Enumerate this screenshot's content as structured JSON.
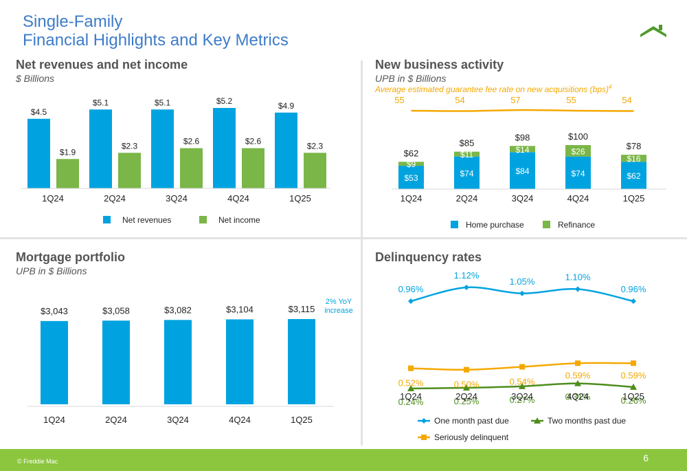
{
  "header": {
    "title_line1": "Single-Family",
    "title_line2": "Financial Highlights and Key Metrics"
  },
  "footer": {
    "copyright": "© Freddie Mac",
    "page_number": "6"
  },
  "colors": {
    "blue": "#00a3e0",
    "green": "#7ab648",
    "dark_green": "#4e8d1c",
    "orange": "#f5a800",
    "title_blue": "#3d7cc9"
  },
  "icons": {
    "logo": "house-roof-icon"
  },
  "panels": {
    "revenues": {
      "title": "Net revenues and net income",
      "subtitle": "$ Billions"
    },
    "new_business": {
      "title": "New business activity",
      "subtitle": "UPB in $ Billions",
      "fee_note": "Average estimated guarantee fee rate on new acquisitions (bps)",
      "fee_note_sup": "4"
    },
    "portfolio": {
      "title": "Mortgage portfolio",
      "subtitle": "UPB in $ Billions",
      "yoy_note": "2% YoY increase"
    },
    "delinquency": {
      "title": "Delinquency rates"
    }
  },
  "chart_data": [
    {
      "id": "revenues",
      "type": "bar",
      "categories": [
        "1Q24",
        "2Q24",
        "3Q24",
        "4Q24",
        "1Q25"
      ],
      "series": [
        {
          "name": "Net revenues",
          "color": "#00a3e0",
          "values": [
            4.5,
            5.1,
            5.1,
            5.2,
            4.9
          ],
          "labels": [
            "$4.5",
            "$5.1",
            "$5.1",
            "$5.2",
            "$4.9"
          ]
        },
        {
          "name": "Net income",
          "color": "#7ab648",
          "values": [
            1.9,
            2.3,
            2.6,
            2.6,
            2.3
          ],
          "labels": [
            "$1.9",
            "$2.3",
            "$2.6",
            "$2.6",
            "$2.3"
          ]
        }
      ],
      "ylim": [
        0,
        6
      ],
      "legend": "bottom"
    },
    {
      "id": "new_business",
      "type": "bar",
      "stacked": true,
      "categories": [
        "1Q24",
        "2Q24",
        "3Q24",
        "4Q24",
        "1Q25"
      ],
      "series": [
        {
          "name": "Home purchase",
          "color": "#00a3e0",
          "values": [
            53,
            74,
            84,
            74,
            62
          ],
          "labels": [
            "$53",
            "$74",
            "$84",
            "$74",
            "$62"
          ]
        },
        {
          "name": "Refinance",
          "color": "#7ab648",
          "values": [
            9,
            11,
            14,
            26,
            16
          ],
          "labels": [
            "$9",
            "$11",
            "$14",
            "$26",
            "$16"
          ]
        }
      ],
      "totals": [
        "$62",
        "$85",
        "$98",
        "$100",
        "$78"
      ],
      "total_values": [
        62,
        85,
        98,
        100,
        78
      ],
      "fee_rate_bps": [
        55,
        54,
        57,
        55,
        54
      ],
      "ylim": [
        0,
        110
      ],
      "legend": "bottom"
    },
    {
      "id": "portfolio",
      "type": "bar",
      "categories": [
        "1Q24",
        "2Q24",
        "3Q24",
        "4Q24",
        "1Q25"
      ],
      "series": [
        {
          "name": "Mortgage portfolio",
          "color": "#00a3e0",
          "values": [
            3043,
            3058,
            3082,
            3104,
            3115
          ],
          "labels": [
            "$3,043",
            "$3,058",
            "$3,082",
            "$3,104",
            "$3,115"
          ]
        }
      ],
      "ylim": [
        0,
        3500
      ]
    },
    {
      "id": "delinquency",
      "type": "line",
      "categories": [
        "1Q24",
        "2Q24",
        "3Q24",
        "4Q24",
        "1Q25"
      ],
      "series": [
        {
          "name": "One month past due",
          "color": "#00a3e0",
          "marker": "diamond",
          "values": [
            0.96,
            1.12,
            1.05,
            1.1,
            0.96
          ],
          "labels": [
            "0.96%",
            "1.12%",
            "1.05%",
            "1.10%",
            "0.96%"
          ]
        },
        {
          "name": "Two months past due",
          "color": "#4e8d1c",
          "marker": "triangle",
          "values": [
            0.24,
            0.25,
            0.27,
            0.31,
            0.26
          ],
          "labels": [
            "0.24%",
            "0.25%",
            "0.27%",
            "0.31%",
            "0.26%"
          ]
        },
        {
          "name": "Seriously delinquent",
          "color": "#f5a800",
          "marker": "square",
          "values": [
            0.52,
            0.5,
            0.54,
            0.59,
            0.59
          ],
          "labels": [
            "0.52%",
            "0.50%",
            "0.54%",
            "0.59%",
            "0.59%"
          ]
        }
      ],
      "legend": "bottom"
    }
  ]
}
